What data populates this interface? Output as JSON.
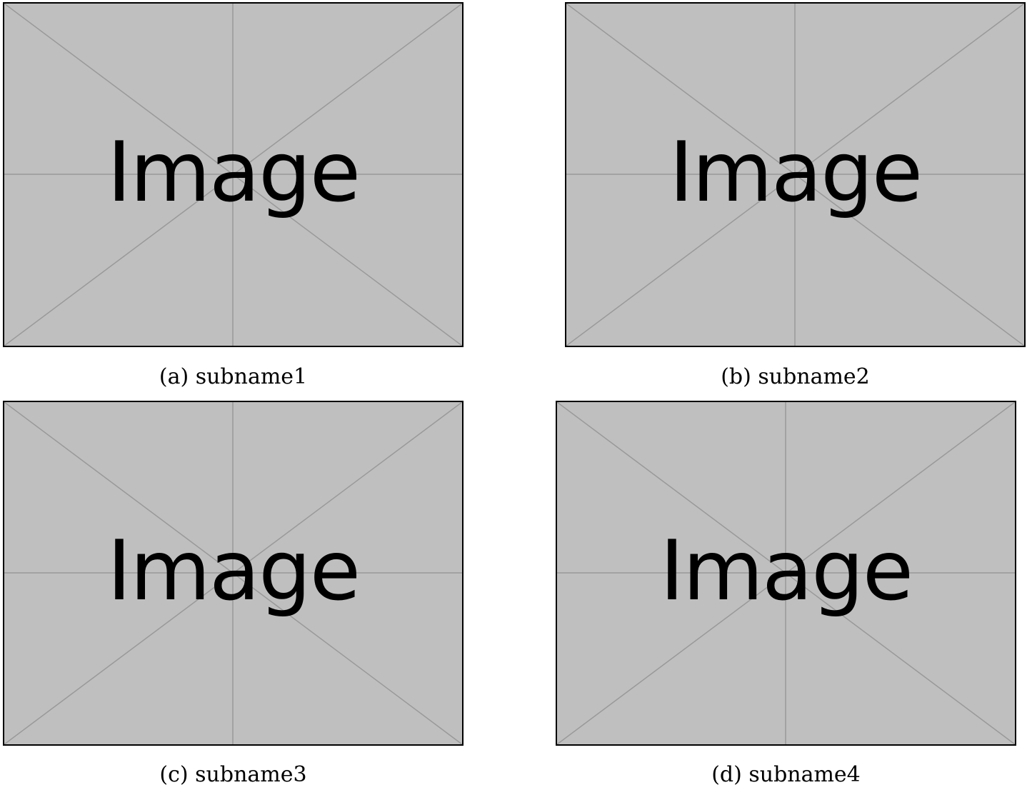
{
  "colors": {
    "placeholder_fill": "#bfbfbf",
    "placeholder_lines": "#999999",
    "border": "#000000"
  },
  "figures": [
    {
      "image_text": "Image",
      "caption": "(a) subname1"
    },
    {
      "image_text": "Image",
      "caption": "(b) subname2"
    },
    {
      "image_text": "Image",
      "caption": "(c) subname3"
    },
    {
      "image_text": "Image",
      "caption": "(d) subname4"
    }
  ]
}
